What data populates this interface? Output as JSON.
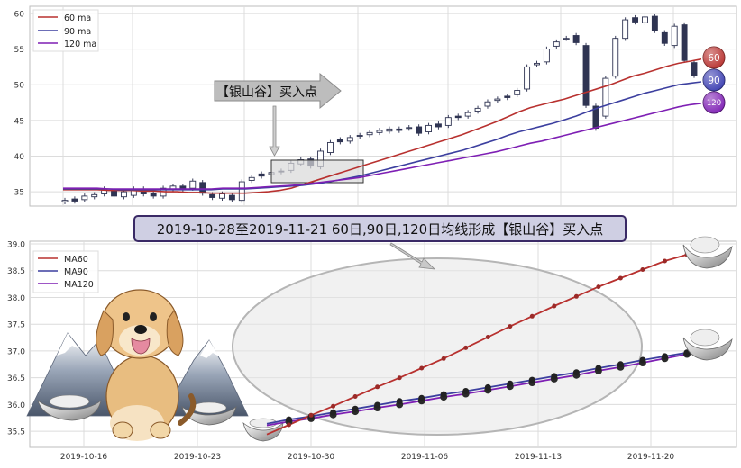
{
  "chart_data": [
    {
      "type": "candlestick",
      "ylim": [
        33,
        61
      ],
      "yticks": [
        "35",
        "40",
        "45",
        "50",
        "55",
        "60"
      ],
      "grid": true,
      "legend_position": "top-left",
      "legend": [
        "60 ma",
        "90 ma",
        "120 ma"
      ],
      "series": [
        {
          "name": "60 ma",
          "color": "#b8312f",
          "values": [
            35.3,
            35.3,
            35.3,
            35.3,
            35.2,
            35.2,
            35.2,
            35.1,
            35.1,
            35.0,
            35.0,
            34.9,
            34.9,
            34.8,
            34.8,
            34.8,
            34.8,
            34.9,
            35.0,
            35.2,
            35.5,
            36.0,
            36.5,
            37.0,
            37.5,
            38.0,
            38.5,
            39.0,
            39.5,
            40.0,
            40.5,
            41.0,
            41.5,
            42.0,
            42.5,
            43.0,
            43.6,
            44.2,
            44.8,
            45.5,
            46.2,
            46.8,
            47.2,
            47.6,
            48.0,
            48.5,
            49.0,
            49.5,
            50.0,
            50.6,
            51.2,
            51.6,
            52.1,
            52.6,
            53.0,
            53.3,
            53.6
          ]
        },
        {
          "name": "90 ma",
          "color": "#3c3f9f",
          "values": [
            35.4,
            35.4,
            35.4,
            35.4,
            35.4,
            35.3,
            35.3,
            35.3,
            35.3,
            35.3,
            35.3,
            35.3,
            35.3,
            35.3,
            35.4,
            35.4,
            35.4,
            35.5,
            35.6,
            35.7,
            35.8,
            35.9,
            36.1,
            36.3,
            36.6,
            36.9,
            37.2,
            37.6,
            38.0,
            38.4,
            38.8,
            39.2,
            39.6,
            40.0,
            40.4,
            40.8,
            41.3,
            41.8,
            42.3,
            42.9,
            43.4,
            43.8,
            44.2,
            44.6,
            45.1,
            45.6,
            46.2,
            46.8,
            47.3,
            47.8,
            48.3,
            48.8,
            49.2,
            49.6,
            50.0,
            50.2,
            50.4
          ]
        },
        {
          "name": "120 ma",
          "color": "#7e1fb4",
          "values": [
            35.5,
            35.5,
            35.5,
            35.5,
            35.4,
            35.4,
            35.4,
            35.4,
            35.4,
            35.4,
            35.4,
            35.4,
            35.4,
            35.4,
            35.5,
            35.5,
            35.5,
            35.6,
            35.7,
            35.8,
            35.9,
            36.0,
            36.2,
            36.4,
            36.6,
            36.8,
            37.0,
            37.3,
            37.6,
            37.9,
            38.2,
            38.5,
            38.8,
            39.1,
            39.4,
            39.7,
            40.0,
            40.3,
            40.6,
            41.0,
            41.4,
            41.8,
            42.1,
            42.5,
            42.9,
            43.3,
            43.7,
            44.1,
            44.5,
            44.9,
            45.3,
            45.7,
            46.1,
            46.5,
            46.9,
            47.2,
            47.4
          ]
        }
      ],
      "candles": [
        [
          33.6,
          33.8
        ],
        [
          34.0,
          33.7
        ],
        [
          33.9,
          34.4
        ],
        [
          34.3,
          34.6
        ],
        [
          34.7,
          35.4
        ],
        [
          35.2,
          34.4
        ],
        [
          34.3,
          35.0
        ],
        [
          34.5,
          35.4
        ],
        [
          35.4,
          34.7
        ],
        [
          34.8,
          34.4
        ],
        [
          34.4,
          35.5
        ],
        [
          35.3,
          35.8
        ],
        [
          35.8,
          35.3
        ],
        [
          35.5,
          36.5
        ],
        [
          36.3,
          34.8
        ],
        [
          34.6,
          34.2
        ],
        [
          34.1,
          34.7
        ],
        [
          34.5,
          33.9
        ],
        [
          33.8,
          36.4
        ],
        [
          36.6,
          37.0
        ],
        [
          37.5,
          37.2
        ],
        [
          37.4,
          37.7
        ],
        [
          37.9,
          37.8
        ],
        [
          38.0,
          39.0
        ],
        [
          38.9,
          39.5
        ],
        [
          39.6,
          38.6
        ],
        [
          38.5,
          40.7
        ],
        [
          40.5,
          41.9
        ],
        [
          42.3,
          42.0
        ],
        [
          42.1,
          42.6
        ],
        [
          42.8,
          42.9
        ],
        [
          43.0,
          43.3
        ],
        [
          43.3,
          43.6
        ],
        [
          43.5,
          43.8
        ],
        [
          43.8,
          43.6
        ],
        [
          43.9,
          44.0
        ],
        [
          44.1,
          43.2
        ],
        [
          43.4,
          44.3
        ],
        [
          44.5,
          44.1
        ],
        [
          44.3,
          45.4
        ],
        [
          45.6,
          45.4
        ],
        [
          45.6,
          46.1
        ],
        [
          46.3,
          46.7
        ],
        [
          47.0,
          47.6
        ],
        [
          47.8,
          48.0
        ],
        [
          48.4,
          48.2
        ],
        [
          48.6,
          49.2
        ],
        [
          49.4,
          52.5
        ],
        [
          52.8,
          53.0
        ],
        [
          53.2,
          55.0
        ],
        [
          55.4,
          56.0
        ],
        [
          56.5,
          56.5
        ],
        [
          56.9,
          55.9
        ],
        [
          55.5,
          47.1
        ],
        [
          47.0,
          43.9
        ],
        [
          45.6,
          50.9
        ],
        [
          51.2,
          56.5
        ],
        [
          56.5,
          59.1
        ],
        [
          59.4,
          58.8
        ],
        [
          58.7,
          59.5
        ],
        [
          59.6,
          57.6
        ],
        [
          57.3,
          55.8
        ],
        [
          55.5,
          58.2
        ],
        [
          58.4,
          53.4
        ],
        [
          53.1,
          51.3
        ]
      ],
      "annotations": [
        {
          "label": "【银山谷】买入点",
          "description": "arrow callout"
        },
        {
          "kind": "highlight_box"
        }
      ],
      "badges": [
        "60",
        "90",
        "120"
      ]
    },
    {
      "type": "line",
      "title": "2019-10-28至2019-11-21 60日,90日,120日均线形成【银山谷】买入点",
      "ylim": [
        35.2,
        39.05
      ],
      "yticks": [
        "35.5",
        "36.0",
        "36.5",
        "37.0",
        "37.5",
        "38.0",
        "38.5",
        "39.0"
      ],
      "xticks": [
        "2019-10-16",
        "2019-10-23",
        "2019-10-30",
        "2019-11-06",
        "2019-11-13",
        "2019-11-20"
      ],
      "grid": true,
      "legend_position": "top-left",
      "legend": [
        "MA60",
        "MA90",
        "MA120"
      ],
      "series": [
        {
          "name": "MA60",
          "color": "#b8312f",
          "marker_color": "#9b2a28",
          "marker_size": 5,
          "values": [
            35.44,
            35.62,
            35.8,
            35.97,
            36.15,
            36.33,
            36.5,
            36.68,
            36.86,
            37.06,
            37.26,
            37.46,
            37.65,
            37.84,
            38.02,
            38.2,
            38.36,
            38.52,
            38.68,
            38.8
          ]
        },
        {
          "name": "MA90",
          "color": "#3c3f9f",
          "marker_color": "#222222",
          "marker_size": 6,
          "values": [
            35.64,
            35.72,
            35.78,
            35.85,
            35.92,
            35.99,
            36.06,
            36.12,
            36.19,
            36.25,
            36.32,
            36.39,
            36.46,
            36.53,
            36.6,
            36.68,
            36.75,
            36.83,
            36.9,
            36.97
          ]
        },
        {
          "name": "MA120",
          "color": "#7e1fb4",
          "marker_color": "#2a2a2a",
          "marker_size": 7,
          "values": [
            35.61,
            35.68,
            35.74,
            35.81,
            35.87,
            35.94,
            36.0,
            36.07,
            36.14,
            36.2,
            36.27,
            36.34,
            36.41,
            36.48,
            36.55,
            36.63,
            36.7,
            36.78,
            36.86,
            36.94
          ]
        }
      ],
      "annotations": [
        {
          "kind": "ellipse_highlight"
        },
        {
          "kind": "pointer_arrow"
        }
      ],
      "decorations": [
        "silver-ingot",
        "puppy-mascot",
        "snow-mountains"
      ]
    }
  ]
}
